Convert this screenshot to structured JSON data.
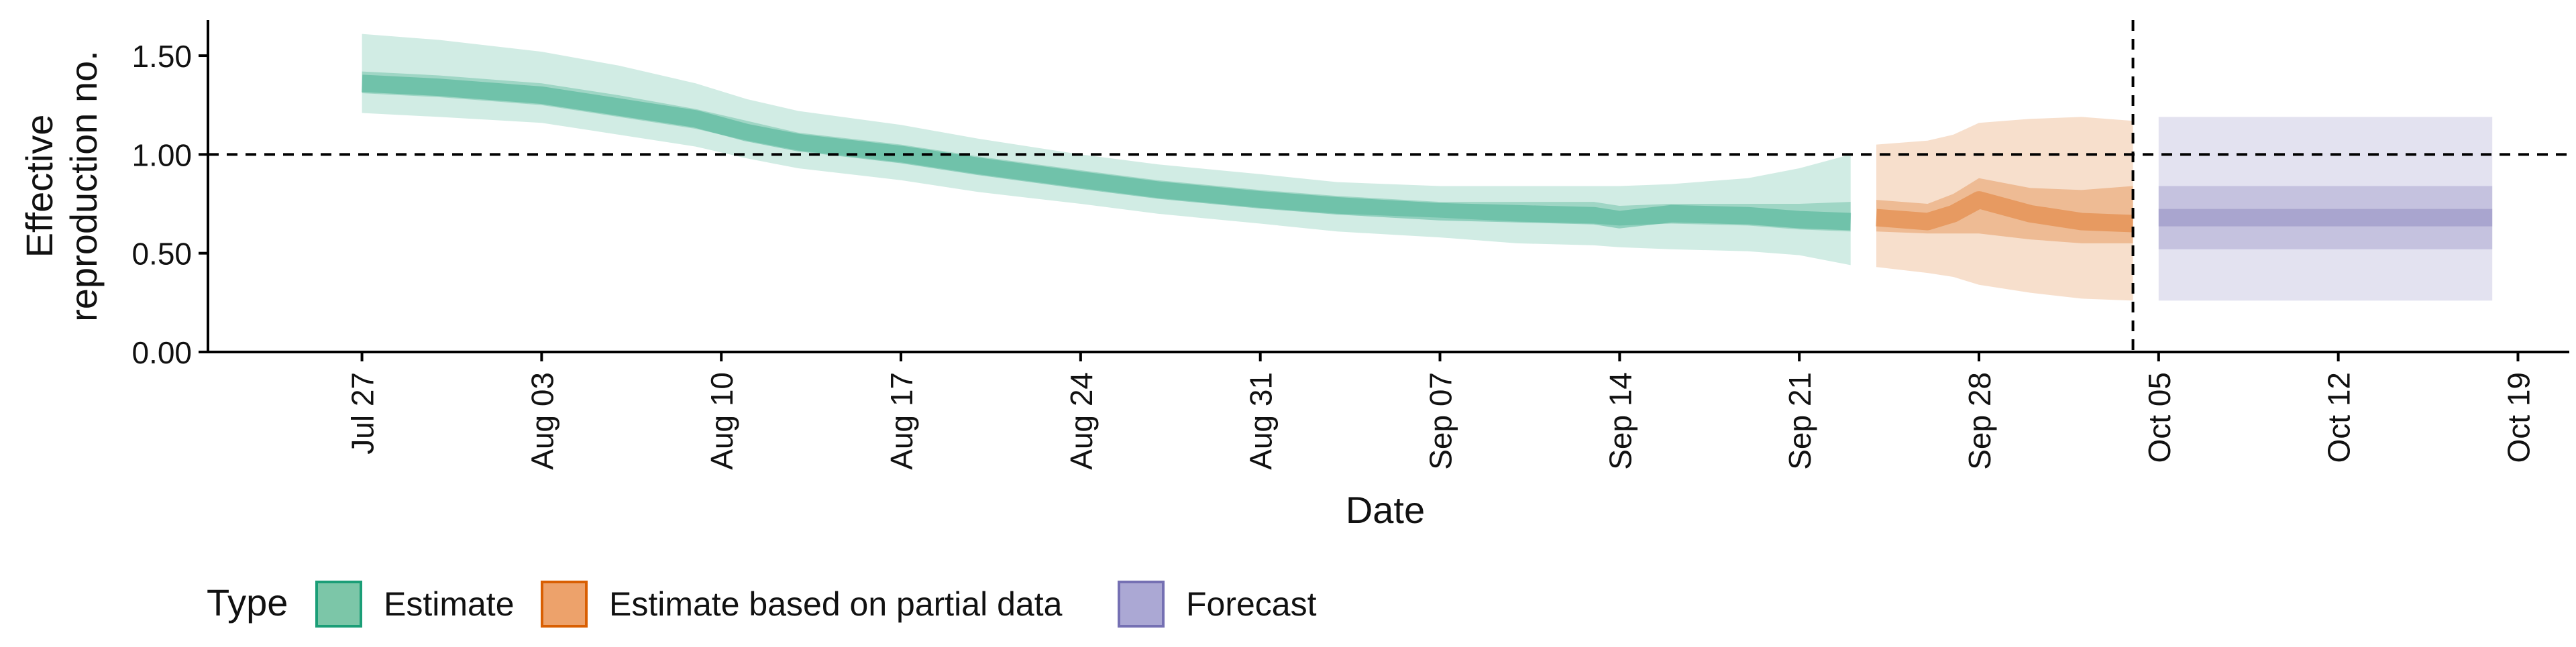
{
  "chart_data": {
    "type": "area",
    "title": "",
    "xlabel": "Date",
    "ylabel": "Effective\nreproduction no.",
    "ylim": [
      0,
      1.68
    ],
    "xlim": [
      "2020-07-21",
      "2020-10-21"
    ],
    "x_ticks": [
      "2020-07-27",
      "2020-08-03",
      "2020-08-10",
      "2020-08-17",
      "2020-08-24",
      "2020-08-31",
      "2020-09-07",
      "2020-09-14",
      "2020-09-21",
      "2020-09-28",
      "2020-10-05",
      "2020-10-12",
      "2020-10-19"
    ],
    "x_tick_labels": [
      "Jul 27",
      "Aug 03",
      "Aug 10",
      "Aug 17",
      "Aug 24",
      "Aug 31",
      "Sep 07",
      "Sep 14",
      "Sep 21",
      "Sep 28",
      "Oct 05",
      "Oct 12",
      "Oct 19"
    ],
    "y_ticks": [
      0,
      0.5,
      1,
      1.5
    ],
    "y_tick_labels": [
      "0.00",
      "0.50",
      "1.00",
      "1.50"
    ],
    "reference_line_y": 1.0,
    "reference_line_date": "2020-10-04",
    "grid": false,
    "legend": {
      "position": "bottom-left",
      "title": "Type",
      "entries": [
        {
          "label": "Estimate",
          "fill": "#7CC6A8",
          "border": "#1B9E77"
        },
        {
          "label": "Estimate based on partial data",
          "fill": "#EDA26B",
          "border": "#D95F02"
        },
        {
          "label": "Forecast",
          "fill": "#ABA8D4",
          "border": "#7570B3"
        }
      ]
    },
    "series": [
      {
        "name": "Estimate",
        "color": "#1B9E77",
        "x": [
          "2020-07-27",
          "2020-07-30",
          "2020-08-03",
          "2020-08-06",
          "2020-08-09",
          "2020-08-11",
          "2020-08-13",
          "2020-08-17",
          "2020-08-20",
          "2020-08-24",
          "2020-08-27",
          "2020-08-31",
          "2020-09-03",
          "2020-09-07",
          "2020-09-10",
          "2020-09-13",
          "2020-09-14",
          "2020-09-16",
          "2020-09-19",
          "2020-09-21",
          "2020-09-23"
        ],
        "median": [
          1.36,
          1.34,
          1.3,
          1.24,
          1.18,
          1.11,
          1.06,
          1.0,
          0.94,
          0.87,
          0.82,
          0.77,
          0.74,
          0.71,
          0.7,
          0.69,
          0.67,
          0.7,
          0.69,
          0.67,
          0.66
        ],
        "lower_50": [
          1.31,
          1.29,
          1.25,
          1.19,
          1.13,
          1.07,
          1.02,
          0.96,
          0.9,
          0.83,
          0.78,
          0.73,
          0.7,
          0.68,
          0.66,
          0.65,
          0.64,
          0.65,
          0.64,
          0.62,
          0.61
        ],
        "upper_50": [
          1.42,
          1.4,
          1.36,
          1.3,
          1.23,
          1.17,
          1.11,
          1.05,
          0.99,
          0.92,
          0.87,
          0.82,
          0.79,
          0.76,
          0.76,
          0.76,
          0.74,
          0.75,
          0.75,
          0.75,
          0.76
        ],
        "lower_90": [
          1.21,
          1.19,
          1.16,
          1.1,
          1.04,
          0.98,
          0.93,
          0.87,
          0.81,
          0.75,
          0.7,
          0.65,
          0.61,
          0.58,
          0.55,
          0.54,
          0.53,
          0.52,
          0.51,
          0.49,
          0.44
        ],
        "upper_90": [
          1.61,
          1.58,
          1.52,
          1.45,
          1.36,
          1.28,
          1.22,
          1.15,
          1.08,
          1.0,
          0.95,
          0.9,
          0.86,
          0.84,
          0.84,
          0.84,
          0.84,
          0.85,
          0.88,
          0.93,
          1.0
        ]
      },
      {
        "name": "Estimate based on partial data",
        "color": "#D95F02",
        "x": [
          "2020-09-24",
          "2020-09-26",
          "2020-09-27",
          "2020-09-28",
          "2020-09-30",
          "2020-10-02",
          "2020-10-04"
        ],
        "median": [
          0.68,
          0.66,
          0.7,
          0.77,
          0.7,
          0.66,
          0.65
        ],
        "lower_50": [
          0.61,
          0.6,
          0.6,
          0.6,
          0.57,
          0.55,
          0.55
        ],
        "upper_50": [
          0.77,
          0.75,
          0.8,
          0.88,
          0.83,
          0.82,
          0.84
        ],
        "lower_90": [
          0.43,
          0.4,
          0.38,
          0.34,
          0.3,
          0.27,
          0.26
        ],
        "upper_90": [
          1.05,
          1.07,
          1.1,
          1.16,
          1.18,
          1.19,
          1.17
        ]
      },
      {
        "name": "Forecast",
        "color": "#7570B3",
        "x": [
          "2020-10-05",
          "2020-10-18"
        ],
        "median": [
          0.68,
          0.68
        ],
        "lower_50": [
          0.52,
          0.52
        ],
        "upper_50": [
          0.84,
          0.84
        ],
        "lower_90": [
          0.26,
          0.26
        ],
        "upper_90": [
          1.19,
          1.19
        ]
      }
    ]
  }
}
